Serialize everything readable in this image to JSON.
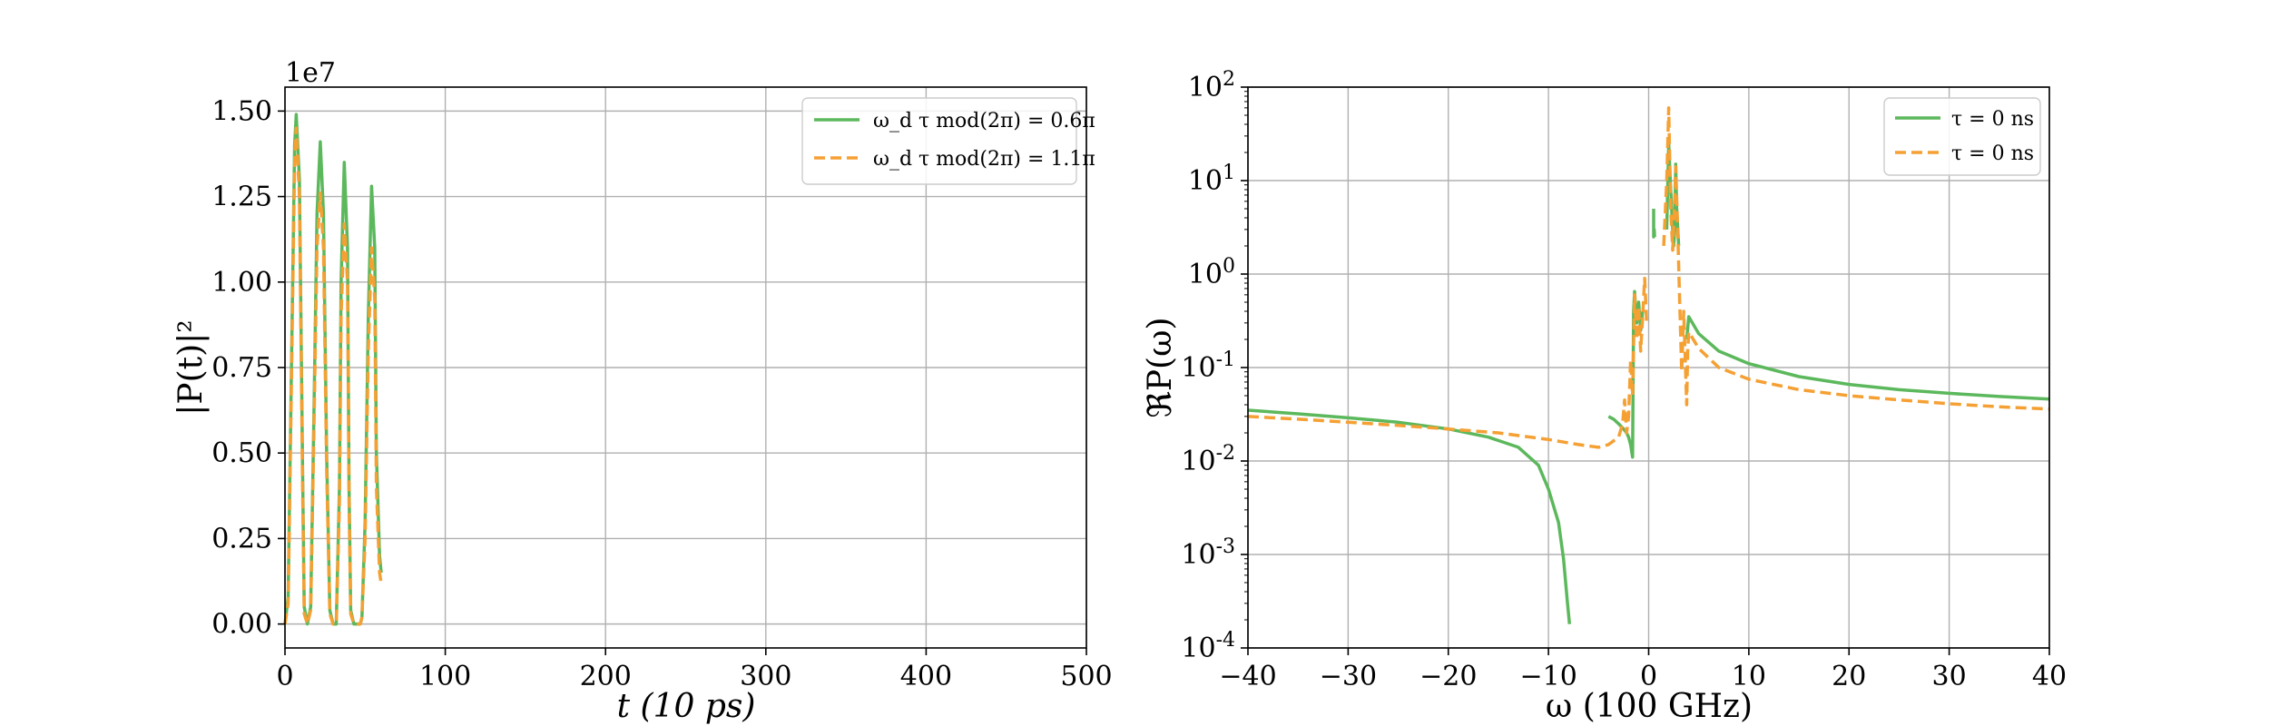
{
  "chart_data": [
    {
      "type": "line",
      "xlabel": "t (10 ps)",
      "ylabel": "|P(t)|²",
      "offset_text": "1e7",
      "xlim": [
        0,
        500
      ],
      "ylim": [
        -0.07,
        1.57
      ],
      "xticks": [
        "0",
        "100",
        "200",
        "300",
        "400",
        "500"
      ],
      "yticks": [
        "0.00",
        "0.25",
        "0.50",
        "0.75",
        "1.00",
        "1.25",
        "1.50"
      ],
      "grid": true,
      "legend_position": "top-right",
      "series": [
        {
          "name": "ω_d τ mod(2π) = 0.6π",
          "color": "#5cb85c",
          "style": "solid",
          "x": [
            0,
            2,
            4,
            6,
            7,
            9,
            11,
            12,
            14,
            16,
            18,
            20,
            22,
            24,
            26,
            28,
            30,
            32,
            34,
            35,
            37,
            39,
            40,
            41,
            43,
            45,
            47,
            48,
            50,
            52,
            54,
            56,
            57,
            59,
            60
          ],
          "y": [
            0.0,
            0.08,
            0.75,
            1.4,
            1.49,
            1.3,
            0.45,
            0.05,
            0.0,
            0.05,
            0.6,
            1.2,
            1.41,
            1.2,
            0.5,
            0.04,
            0.0,
            0.0,
            0.4,
            1.0,
            1.35,
            1.1,
            0.4,
            0.04,
            0.0,
            0.0,
            0.0,
            0.02,
            0.3,
            0.9,
            1.28,
            1.1,
            0.5,
            0.2,
            0.15
          ]
        },
        {
          "name": "ω_d τ mod(2π) = 1.1π",
          "color": "#f5a033",
          "style": "dashed",
          "x": [
            0,
            2,
            4,
            6,
            7,
            9,
            11,
            12,
            14,
            16,
            18,
            20,
            22,
            24,
            26,
            28,
            30,
            32,
            34,
            35,
            37,
            39,
            40,
            41,
            43,
            45,
            47,
            48,
            50,
            52,
            54,
            56,
            57,
            59,
            60
          ],
          "y": [
            0.0,
            0.06,
            0.7,
            1.35,
            1.45,
            1.25,
            0.4,
            0.03,
            0.0,
            0.04,
            0.55,
            1.1,
            1.26,
            1.1,
            0.45,
            0.03,
            0.0,
            0.0,
            0.35,
            0.9,
            1.17,
            1.0,
            0.35,
            0.03,
            0.0,
            0.0,
            0.0,
            0.02,
            0.25,
            0.8,
            1.1,
            0.95,
            0.4,
            0.15,
            0.12
          ]
        }
      ]
    },
    {
      "type": "line",
      "xlabel": "ω (100 GHz)",
      "ylabel": "ℜP(ω)",
      "xlim": [
        -40,
        40
      ],
      "ylim_log10": [
        -4,
        2
      ],
      "yscale": "log",
      "xticks": [
        "−40",
        "−30",
        "−20",
        "−10",
        "0",
        "10",
        "20",
        "30",
        "40"
      ],
      "yticks": [
        "10-4",
        "10-3",
        "10-2",
        "10-1",
        "100",
        "101",
        "102"
      ],
      "grid": true,
      "legend_position": "top-right",
      "series": [
        {
          "name": "τ = 0 ns",
          "color": "#5cb85c",
          "style": "solid",
          "x": [
            -40,
            -35,
            -30,
            -25,
            -20,
            -16,
            -13,
            -11,
            -10,
            -9,
            -8.5,
            -8.1,
            -7.9
          ],
          "y": [
            0.035,
            0.032,
            0.029,
            0.026,
            0.022,
            0.018,
            0.014,
            0.009,
            0.005,
            0.0022,
            0.0009,
            0.0003,
            0.00018
          ]
        },
        {
          "name": "",
          "color": "#5cb85c",
          "style": "solid",
          "x": [
            -4,
            -3.5,
            -3,
            -2.5,
            -2.2,
            -2,
            -1.8,
            -1.6,
            -1.5,
            -1.4,
            -1.2,
            -1,
            -0.8,
            -0.6
          ],
          "y": [
            0.03,
            0.028,
            0.025,
            0.022,
            0.02,
            0.018,
            0.015,
            0.011,
            0.4,
            0.65,
            0.3,
            0.5,
            0.25,
            0.4
          ]
        },
        {
          "name": "",
          "color": "#5cb85c",
          "style": "solid",
          "x": [
            0.5,
            0.5,
            0.55,
            0.6
          ],
          "y": [
            5,
            2.5,
            3,
            2.5
          ]
        },
        {
          "name": "",
          "color": "#5cb85c",
          "style": "solid",
          "x": [
            1.8,
            2.0,
            2.2,
            2.4,
            2.5,
            2.6,
            2.7,
            2.8,
            3.0
          ],
          "y": [
            3,
            25,
            8,
            3,
            2,
            3,
            15,
            5,
            2
          ]
        },
        {
          "name": "",
          "color": "#5cb85c",
          "style": "solid",
          "x": [
            3.8,
            4,
            5,
            7,
            10,
            15,
            20,
            25,
            30,
            35,
            40
          ],
          "y": [
            0.2,
            0.35,
            0.23,
            0.15,
            0.11,
            0.08,
            0.066,
            0.058,
            0.053,
            0.049,
            0.046
          ]
        },
        {
          "name": "τ = 0 ns",
          "color": "#f5a033",
          "style": "dashed",
          "x": [
            -40,
            -35,
            -30,
            -25,
            -20,
            -15,
            -10,
            -7,
            -5,
            -4,
            -3,
            -2.6,
            -2.4,
            -2.2,
            -2,
            -1.8,
            -1.6,
            -1.4,
            -1.2,
            -1,
            -0.8,
            -0.6,
            -0.4,
            -0.2
          ],
          "y": [
            0.03,
            0.028,
            0.026,
            0.024,
            0.022,
            0.02,
            0.017,
            0.015,
            0.014,
            0.015,
            0.018,
            0.025,
            0.045,
            0.02,
            0.03,
            0.12,
            0.05,
            0.6,
            0.2,
            0.45,
            0.15,
            0.35,
            0.9,
            0.3
          ]
        },
        {
          "name": "",
          "color": "#f5a033",
          "style": "dashed",
          "x": [
            1.5,
            1.8,
            2.0,
            2.2,
            2.4,
            2.6,
            2.7,
            2.9,
            3.1,
            3.3,
            3.5,
            3.8,
            3.9,
            4.0,
            5,
            7,
            10,
            15,
            20,
            25,
            30,
            35,
            40
          ],
          "y": [
            2,
            10,
            60,
            5,
            1.8,
            6,
            14,
            3,
            0.5,
            0.09,
            0.4,
            0.04,
            0.15,
            0.24,
            0.16,
            0.1,
            0.075,
            0.058,
            0.05,
            0.045,
            0.041,
            0.038,
            0.036
          ]
        }
      ]
    }
  ]
}
